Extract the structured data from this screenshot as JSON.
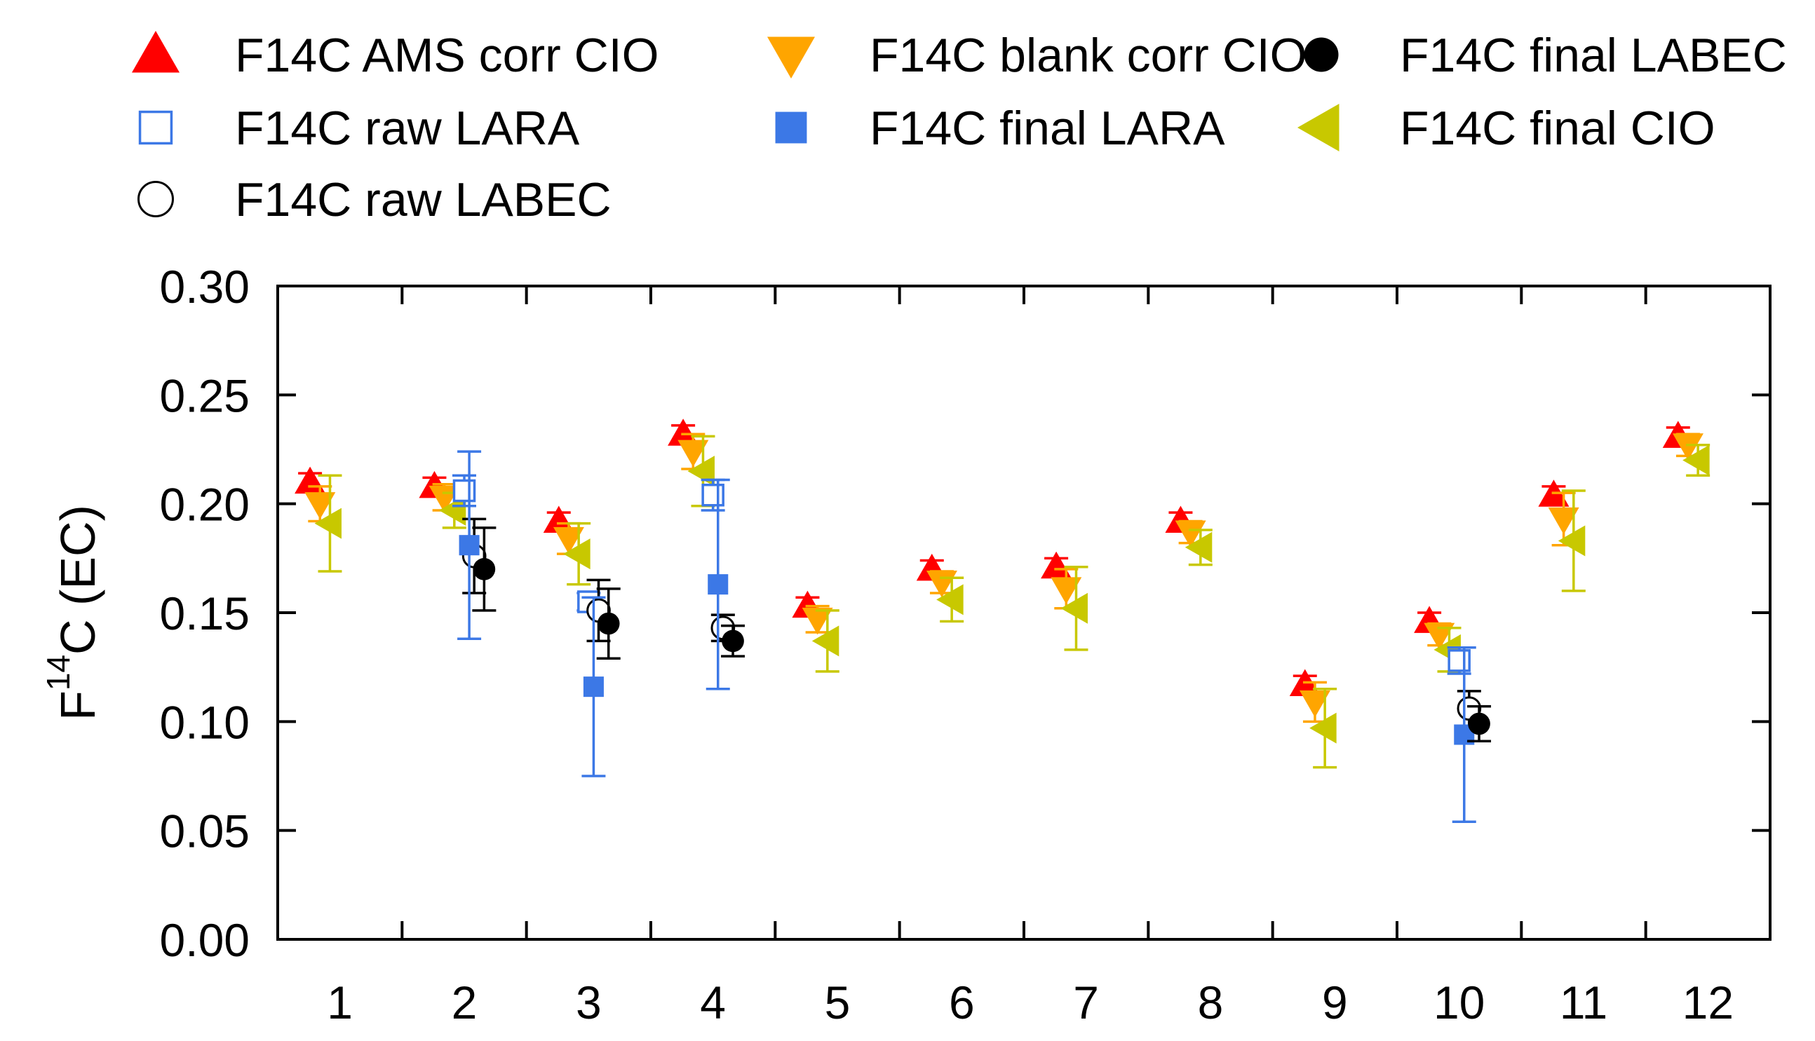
{
  "chart_data": {
    "type": "scatter",
    "title": "",
    "xlabel": "",
    "ylabel": {
      "main": "F",
      "superscript": "14",
      "rest": "C (EC)"
    },
    "categories": [
      "1",
      "2",
      "3",
      "4",
      "5",
      "6",
      "7",
      "8",
      "9",
      "10",
      "11",
      "12"
    ],
    "ylim": [
      0.0,
      0.3
    ],
    "yticks": [
      0.0,
      0.05,
      0.1,
      0.15,
      0.2,
      0.25,
      0.3
    ],
    "ytick_labels": [
      "0.00",
      "0.05",
      "0.10",
      "0.15",
      "0.20",
      "0.25",
      "0.30"
    ],
    "grid": false,
    "legend_position": "top",
    "series": [
      {
        "name": "F14C AMS corr CIO",
        "marker": "triangle-up",
        "filled": true,
        "color": "#ff0000",
        "offset": -0.24,
        "values": [
          0.21,
          0.208,
          0.192,
          0.232,
          0.153,
          0.17,
          0.171,
          0.192,
          0.117,
          0.146,
          0.204,
          0.231
        ],
        "errors": [
          0.004,
          0.004,
          0.004,
          0.004,
          0.004,
          0.004,
          0.004,
          0.004,
          0.004,
          0.004,
          0.004,
          0.004
        ]
      },
      {
        "name": "F14C blank corr CIO",
        "marker": "triangle-down",
        "filled": true,
        "color": "#ffa500",
        "offset": -0.16,
        "values": [
          0.2,
          0.203,
          0.184,
          0.224,
          0.147,
          0.164,
          0.161,
          0.187,
          0.109,
          0.14,
          0.193,
          0.227
        ],
        "errors": [
          0.008,
          0.006,
          0.007,
          0.008,
          0.006,
          0.005,
          0.009,
          0.005,
          0.009,
          0.005,
          0.012,
          0.005
        ]
      },
      {
        "name": "F14C final CIO",
        "marker": "triangle-left",
        "filled": true,
        "color": "#c8c800",
        "offset": -0.08,
        "values": [
          0.191,
          0.197,
          0.177,
          0.215,
          0.137,
          0.156,
          0.152,
          0.18,
          0.097,
          0.133,
          0.183,
          0.22
        ],
        "errors": [
          0.022,
          0.008,
          0.014,
          0.016,
          0.014,
          0.01,
          0.019,
          0.008,
          0.018,
          0.01,
          0.023,
          0.007
        ]
      },
      {
        "name": "F14C raw LARA",
        "marker": "square",
        "filled": false,
        "color": "#3c78e6",
        "offset": 0.0,
        "values": [
          null,
          0.206,
          0.155,
          0.204,
          null,
          null,
          null,
          null,
          null,
          0.128,
          null,
          null
        ],
        "errors": [
          null,
          0.007,
          0.004,
          0.007,
          null,
          null,
          null,
          null,
          null,
          0.006,
          null,
          null
        ]
      },
      {
        "name": "F14C raw LABEC",
        "marker": "circle",
        "filled": false,
        "color": "#000000",
        "offset": 0.08,
        "values": [
          null,
          0.176,
          0.151,
          0.143,
          null,
          null,
          null,
          null,
          null,
          0.106,
          null,
          null
        ],
        "errors": [
          null,
          0.017,
          0.014,
          0.006,
          null,
          null,
          null,
          null,
          null,
          0.008,
          null,
          null
        ]
      },
      {
        "name": "F14C final LARA",
        "marker": "square",
        "filled": true,
        "color": "#3c78e6",
        "offset": 0.04,
        "values": [
          null,
          0.181,
          0.116,
          0.163,
          null,
          null,
          null,
          null,
          null,
          0.094,
          null,
          null
        ],
        "errors": [
          null,
          0.043,
          0.041,
          0.048,
          null,
          null,
          null,
          null,
          null,
          0.04,
          null,
          null
        ]
      },
      {
        "name": "F14C final LABEC",
        "marker": "circle",
        "filled": true,
        "color": "#000000",
        "offset": 0.16,
        "values": [
          null,
          0.17,
          0.145,
          0.137,
          null,
          null,
          null,
          null,
          null,
          0.099,
          null,
          null
        ],
        "errors": [
          null,
          0.019,
          0.016,
          0.007,
          null,
          null,
          null,
          null,
          null,
          0.008,
          null,
          null
        ]
      }
    ],
    "legend_order": [
      0,
      3,
      4,
      1,
      5,
      6,
      2
    ]
  }
}
